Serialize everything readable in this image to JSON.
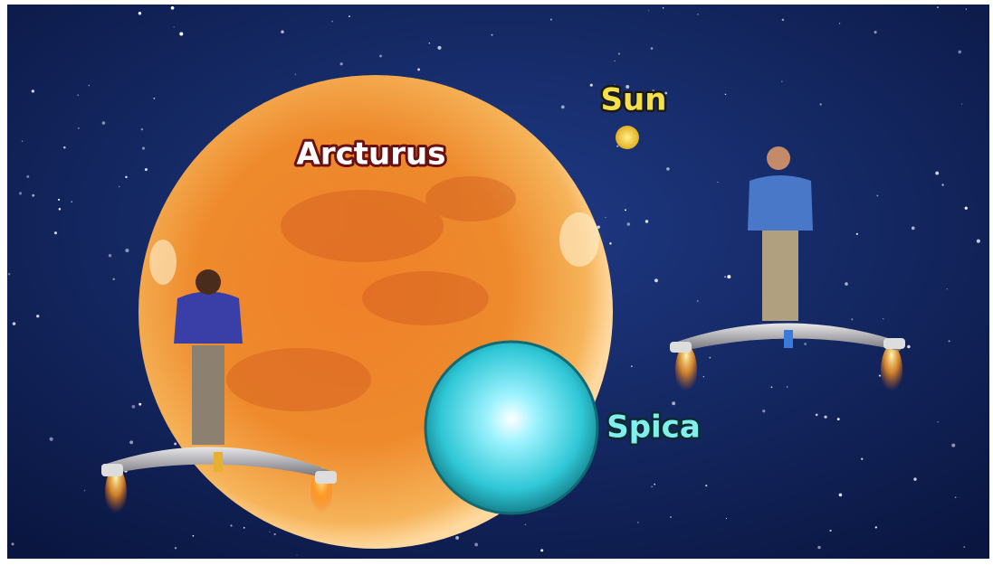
{
  "labels": {
    "arcturus": "Arcturus",
    "sun": "Sun",
    "spica": "Spica"
  }
}
